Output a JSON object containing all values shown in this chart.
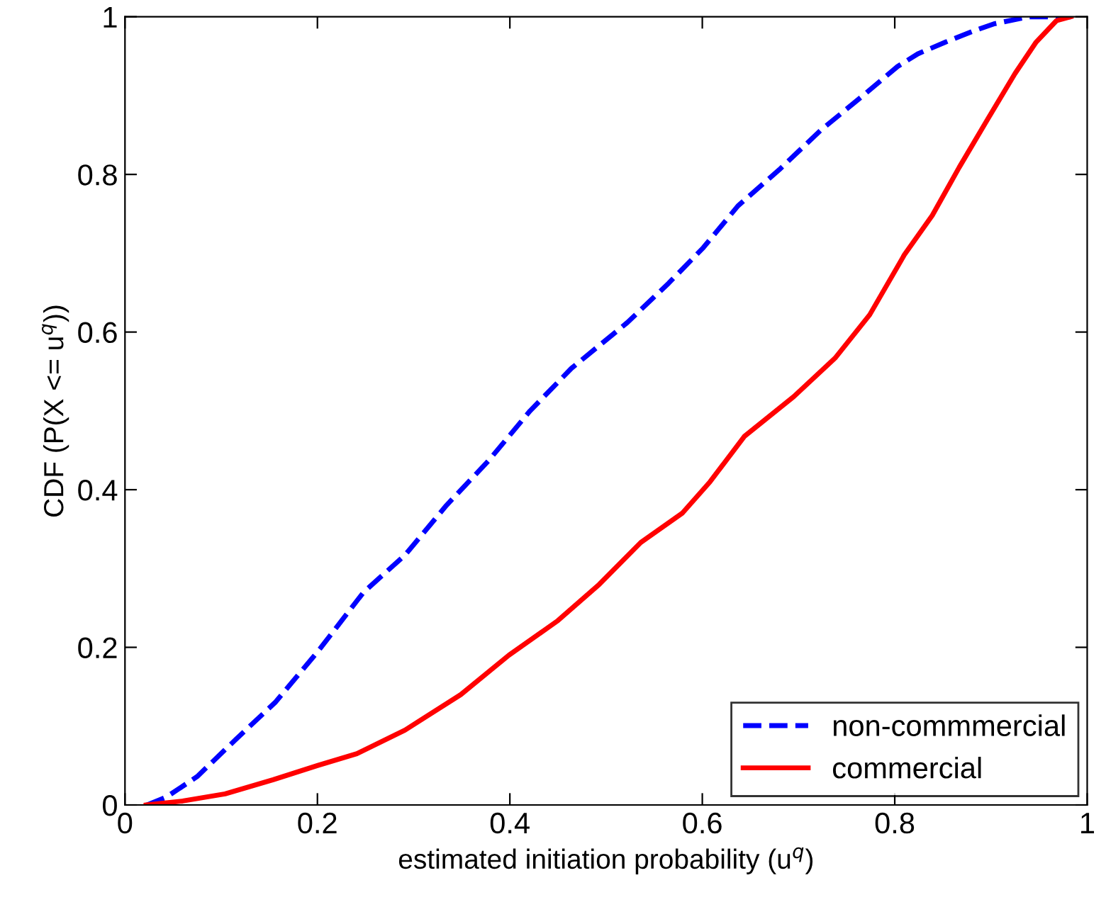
{
  "chart_data": {
    "type": "line",
    "xlabel": "estimated initiation probability (u$^{q}$)",
    "ylabel": "CDF (P(X <= u$^{q}$))",
    "xlim": [
      0,
      1
    ],
    "ylim": [
      0,
      1
    ],
    "xticks": [
      0,
      0.2,
      0.4,
      0.6,
      0.8,
      1
    ],
    "yticks": [
      0,
      0.2,
      0.4,
      0.6,
      0.8,
      1
    ],
    "grid": false,
    "legend": "bottom right",
    "marker": "none",
    "series": [
      {
        "name": "non-commmercial",
        "color": "#0000ff",
        "line_style": "dashed",
        "x": [
          0.023,
          0.043,
          0.075,
          0.115,
          0.156,
          0.2,
          0.248,
          0.291,
          0.334,
          0.378,
          0.421,
          0.464,
          0.522,
          0.565,
          0.601,
          0.637,
          0.68,
          0.723,
          0.767,
          0.803,
          0.824,
          0.853,
          0.882,
          0.903,
          0.939,
          0.983
        ],
        "values": [
          0,
          0.01,
          0.036,
          0.083,
          0.13,
          0.194,
          0.27,
          0.317,
          0.38,
          0.437,
          0.5,
          0.554,
          0.612,
          0.662,
          0.707,
          0.76,
          0.806,
          0.856,
          0.9,
          0.937,
          0.953,
          0.968,
          0.982,
          0.991,
          1,
          1
        ]
      },
      {
        "name": "commercial",
        "color": "#ff0000",
        "line_style": "solid",
        "x": [
          0.022,
          0.06,
          0.104,
          0.154,
          0.2,
          0.241,
          0.291,
          0.349,
          0.399,
          0.45,
          0.493,
          0.536,
          0.579,
          0.608,
          0.644,
          0.695,
          0.738,
          0.774,
          0.81,
          0.839,
          0.867,
          0.896,
          0.925,
          0.947,
          0.968,
          0.983
        ],
        "values": [
          0,
          0.005,
          0.014,
          0.032,
          0.05,
          0.065,
          0.095,
          0.14,
          0.19,
          0.234,
          0.28,
          0.333,
          0.37,
          0.41,
          0.468,
          0.518,
          0.567,
          0.622,
          0.698,
          0.748,
          0.809,
          0.869,
          0.928,
          0.968,
          0.995,
          1
        ]
      }
    ]
  }
}
